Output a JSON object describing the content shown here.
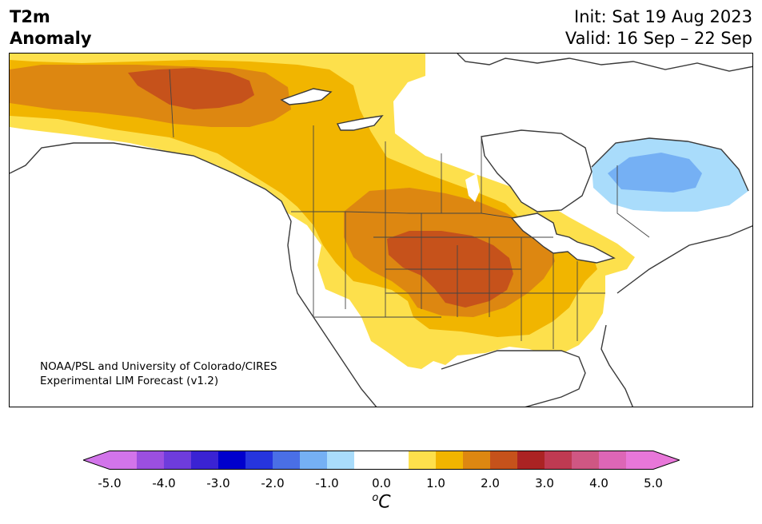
{
  "header": {
    "variable": "T2m",
    "quantity": "Anomaly",
    "init": "Init: Sat 19 Aug 2023",
    "valid": "Valid: 16 Sep – 22 Sep"
  },
  "credit": {
    "line1": "NOAA/PSL and University of Colorado/CIRES",
    "line2": "Experimental LIM Forecast (v1.2)"
  },
  "colorbar": {
    "unit_superscript": "o",
    "unit_letter": "C",
    "tick_labels": [
      "-5.0",
      "-4.0",
      "-3.0",
      "-2.0",
      "-1.0",
      "0.0",
      "1.0",
      "2.0",
      "3.0",
      "4.0",
      "5.0"
    ],
    "colors": [
      "#d274ea",
      "#9b4fe0",
      "#6e3cdc",
      "#3a23d3",
      "#0000cd",
      "#2635de",
      "#4a6fe6",
      "#75b0f4",
      "#a9dcfb",
      "#ffffff",
      "#ffffff",
      "#fde04c",
      "#f1b500",
      "#dd8711",
      "#c6521b",
      "#ab2323",
      "#bf3a52",
      "#cf5783",
      "#dd66b6",
      "#e877d9"
    ],
    "under_color": "#d274ea",
    "over_color": "#e877d9"
  },
  "colors": {
    "level_1": "#fde04c",
    "level_2": "#f1b500",
    "level_3": "#dd8711",
    "level_4": "#c6521b",
    "cool_1": "#a9dcfb",
    "cool_2": "#75b0f4",
    "coast": "#3a3a3a",
    "border": "#444444"
  }
}
